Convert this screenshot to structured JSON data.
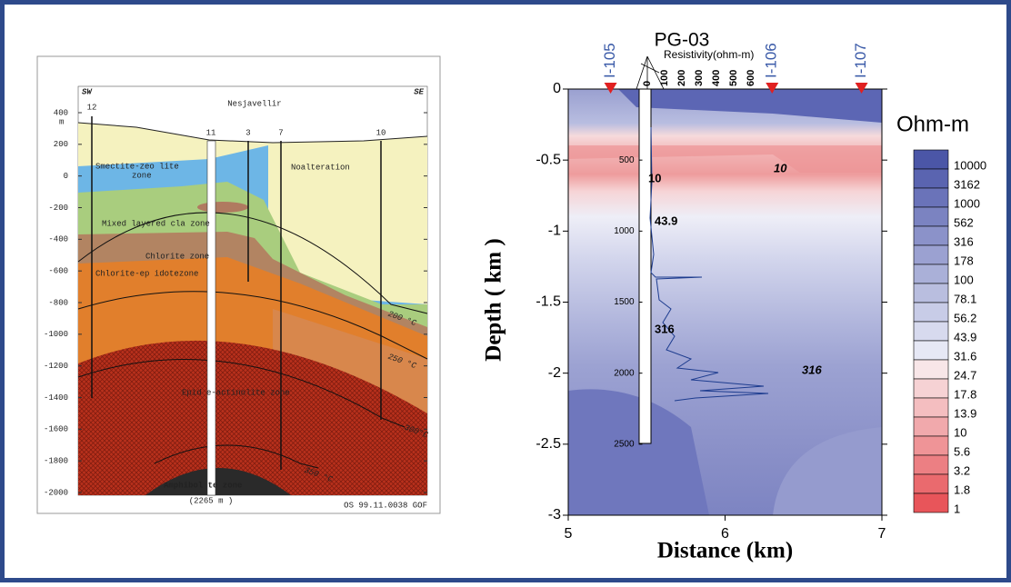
{
  "cross_section": {
    "corner_labels": [
      "SW",
      "SE"
    ],
    "title": "Nesjavellir",
    "elevation_unit": "m",
    "elevation_lim": [
      -2000,
      400
    ],
    "elevation_ticks": [
      400,
      200,
      0,
      -200,
      -400,
      -600,
      -800,
      -1000,
      -1200,
      -1400,
      -1600,
      -1800,
      -2000
    ],
    "wells": [
      "12",
      "11",
      "3",
      "7",
      "10"
    ],
    "zones": [
      "Smectite-zeo lite",
      "zone",
      "Noalteration",
      "Mixed layered cla zone",
      "Chlorite zone",
      "Chlorite-ep idotezone",
      "Epid    e-actinolite zone",
      "Amphibol    te zone"
    ],
    "isotherms": [
      "200 °C",
      "250 °C",
      "300°C",
      "350 °C"
    ],
    "depth_note": "(2265 m )",
    "reference": "OS 99.11.0038 GOF"
  },
  "chart_data": {
    "type": "contour",
    "xlabel": "Distance (km)",
    "ylabel": "Depth ( km )",
    "xlim": [
      5,
      7
    ],
    "ylim": [
      -3,
      0
    ],
    "xticks": [
      5,
      6,
      7
    ],
    "yticks": [
      0,
      -0.5,
      -1,
      -1.5,
      -2,
      -2.5,
      -3
    ],
    "wells": [
      {
        "name": "I-105",
        "x": 5.27
      },
      {
        "name": "I-106",
        "x": 6.3
      },
      {
        "name": "I-107",
        "x": 6.87
      }
    ],
    "borehole": {
      "name": "PG-03",
      "x": 5.49,
      "depth_ticks": [
        500,
        1000,
        1500,
        2000,
        2500
      ],
      "log_label": "Resistivity(ohm-m)",
      "log_ticks": [
        0,
        100,
        200,
        300,
        400,
        500,
        600
      ]
    },
    "contour_labels": [
      "10",
      "10",
      "43.9",
      "316",
      "316"
    ],
    "colorbar": {
      "title": "Ohm-m",
      "levels": [
        "10000",
        "3162",
        "1000",
        "562",
        "316",
        "178",
        "100",
        "78.1",
        "56.2",
        "43.9",
        "31.6",
        "24.7",
        "17.8",
        "13.9",
        "10",
        "5.6",
        "3.2",
        "1.8",
        "1"
      ],
      "colors": [
        "#4b56a7",
        "#5a64b0",
        "#6a73b9",
        "#7b83c1",
        "#8b92c9",
        "#9ba1d1",
        "#aab0d8",
        "#b9bedf",
        "#c8cce7",
        "#d7daee",
        "#e6e8f5",
        "#f8e6e8",
        "#f6d2d4",
        "#f4bec0",
        "#f1a9ac",
        "#ef9497",
        "#ec7f83",
        "#ea6a6e",
        "#e8555a"
      ]
    }
  }
}
